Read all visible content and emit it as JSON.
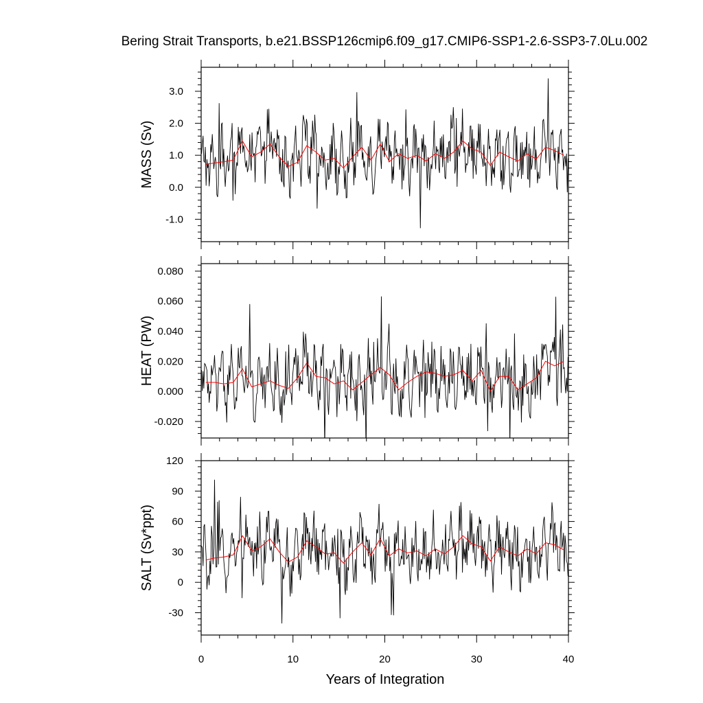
{
  "chart_data": {
    "type": "line",
    "title": "Bering Strait Transports, b.e21.BSSP126cmip6.f09_g17.CMIP6-SSP1-2.6-SSP3-7.0Lu.002",
    "xlabel": "Years of Integration",
    "xlim": [
      0,
      40
    ],
    "x_ticks": [
      "0",
      "10",
      "20",
      "30",
      "40"
    ],
    "colors": {
      "raw": "#000000",
      "annual_mean": "#ff0000"
    },
    "panels": [
      {
        "ylabel": "MASS (Sv)",
        "ylim": [
          -1.7,
          3.75
        ],
        "y_ticks": [
          "-1.0",
          "0.0",
          "1.0",
          "2.0",
          "3.0"
        ],
        "annual_mean": {
          "x": [
            0.5,
            1.5,
            2.5,
            3.5,
            4.5,
            5.5,
            6.5,
            7.5,
            8.5,
            9.5,
            10.5,
            11.5,
            12.5,
            13.5,
            14.5,
            15.5,
            16.5,
            17.5,
            18.5,
            19.5,
            20.5,
            21.5,
            22.5,
            23.5,
            24.5,
            25.5,
            26.5,
            27.5,
            28.5,
            29.5,
            30.5,
            31.5,
            32.5,
            33.5,
            34.5,
            35.5,
            36.5,
            37.5,
            38.5,
            39.5
          ],
          "y": [
            0.72,
            0.76,
            0.8,
            0.85,
            1.45,
            0.95,
            1.1,
            1.35,
            0.95,
            0.65,
            0.78,
            1.3,
            1.1,
            0.85,
            0.9,
            0.6,
            0.95,
            1.25,
            0.85,
            1.35,
            0.8,
            1.05,
            0.9,
            1.0,
            0.82,
            1.05,
            0.9,
            1.1,
            1.45,
            1.2,
            1.1,
            0.68,
            1.1,
            0.95,
            0.82,
            1.05,
            0.88,
            1.25,
            1.15,
            1.0
          ]
        }
      },
      {
        "ylabel": "HEAT (PW)",
        "ylim": [
          -0.031,
          0.085
        ],
        "y_ticks": [
          "-0.020",
          "0.000",
          "0.020",
          "0.040",
          "0.060",
          "0.080"
        ],
        "annual_mean": {
          "x": [
            0.5,
            1.5,
            2.5,
            3.5,
            4.5,
            5.5,
            6.5,
            7.5,
            8.5,
            9.5,
            10.5,
            11.5,
            12.5,
            13.5,
            14.5,
            15.5,
            16.5,
            17.5,
            18.5,
            19.5,
            20.5,
            21.5,
            22.5,
            23.5,
            24.5,
            25.5,
            26.5,
            27.5,
            28.5,
            29.5,
            30.5,
            31.5,
            32.5,
            33.5,
            34.5,
            35.5,
            36.5,
            37.5,
            38.5,
            39.5
          ],
          "y": [
            0.006,
            0.006,
            0.005,
            0.006,
            0.015,
            0.003,
            0.005,
            0.007,
            0.004,
            0.002,
            0.009,
            0.019,
            0.01,
            0.009,
            0.005,
            0.007,
            0.001,
            0.006,
            0.011,
            0.016,
            0.011,
            0.001,
            0.006,
            0.01,
            0.013,
            0.012,
            0.01,
            0.011,
            0.014,
            0.007,
            0.014,
            0.0,
            0.01,
            0.01,
            0.001,
            0.005,
            0.009,
            0.02,
            0.017,
            0.02
          ]
        }
      },
      {
        "ylabel": "SALT (Sv*ppt)",
        "ylim": [
          -52,
          120
        ],
        "y_ticks": [
          "-30",
          "0",
          "30",
          "60",
          "90",
          "120"
        ],
        "annual_mean": {
          "x": [
            0.5,
            1.5,
            2.5,
            3.5,
            4.5,
            5.5,
            6.5,
            7.5,
            8.5,
            9.5,
            10.5,
            11.5,
            12.5,
            13.5,
            14.5,
            15.5,
            16.5,
            17.5,
            18.5,
            19.5,
            20.5,
            21.5,
            22.5,
            23.5,
            24.5,
            25.5,
            26.5,
            27.5,
            28.5,
            29.5,
            30.5,
            31.5,
            32.5,
            33.5,
            34.5,
            35.5,
            36.5,
            37.5,
            38.5,
            39.5
          ],
          "y": [
            22,
            24,
            25,
            27,
            46,
            31,
            35,
            43,
            30,
            20,
            25,
            41,
            35,
            28,
            29,
            19,
            30,
            39,
            27,
            43,
            26,
            33,
            29,
            31,
            26,
            33,
            28,
            35,
            46,
            38,
            35,
            21,
            35,
            30,
            26,
            33,
            28,
            39,
            37,
            32
          ]
        }
      }
    ]
  }
}
